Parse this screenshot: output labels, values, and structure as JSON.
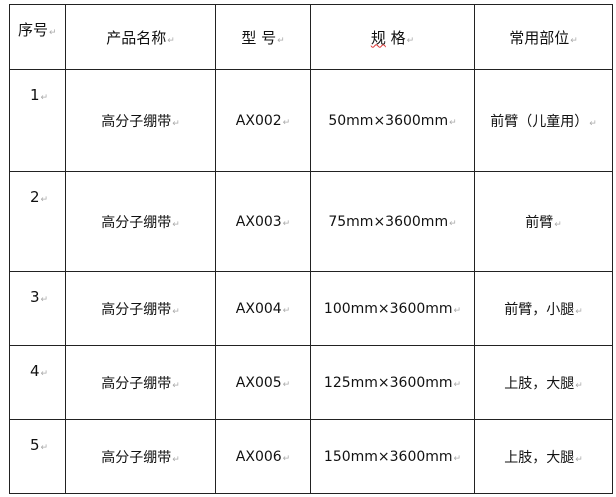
{
  "headers": {
    "no": "序号",
    "name": "产品名称",
    "model": "型 号",
    "spec_a": "规",
    "spec_b": " 格",
    "usage": "常用部位"
  },
  "rows": [
    {
      "no": "1",
      "name": "高分子绷带",
      "model": "AX002",
      "spec": "50mm×3600mm",
      "usage": "前臂（儿童用）"
    },
    {
      "no": "2",
      "name": "高分子绷带",
      "model": "AX003",
      "spec": "75mm×3600mm",
      "usage": "前臂"
    },
    {
      "no": "3",
      "name": "高分子绷带",
      "model": "AX004",
      "spec": "100mm×3600mm",
      "usage": "前臂，小腿"
    },
    {
      "no": "4",
      "name": "高分子绷带",
      "model": "AX005",
      "spec": "125mm×3600mm",
      "usage": "上肢，大腿"
    },
    {
      "no": "5",
      "name": "高分子绷带",
      "model": "AX006",
      "spec": "150mm×3600mm",
      "usage": "上肢，大腿"
    }
  ]
}
